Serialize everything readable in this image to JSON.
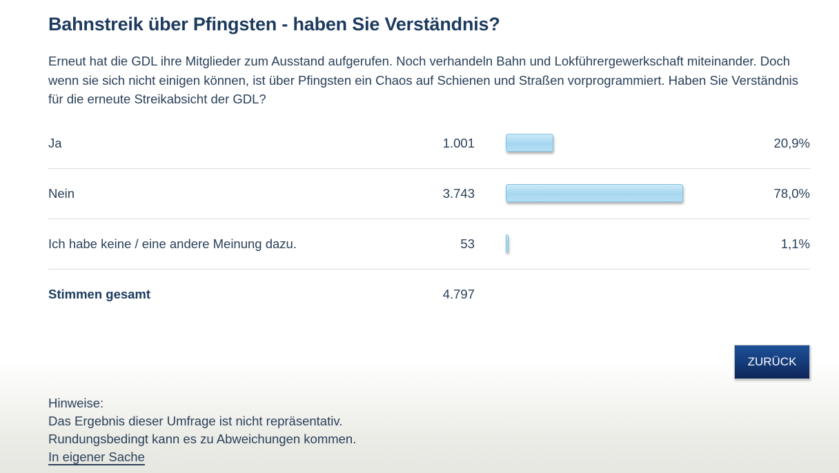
{
  "page": {
    "title": "Bahnstreik über Pfingsten - haben Sie Verständnis?",
    "question": "Erneut hat die GDL ihre Mitglieder zum Ausstand aufgerufen. Noch verhandeln Bahn und Lokführergewerkschaft miteinander. Doch wenn sie sich nicht einigen können, ist über Pfingsten ein Chaos auf Schienen und Straßen vorprogrammiert. Haben Sie Verständnis für die erneute Streikabsicht der GDL?"
  },
  "chart_data": {
    "type": "bar",
    "orientation": "horizontal",
    "categories": [
      "Ja",
      "Nein",
      "Ich habe keine / eine andere Meinung dazu."
    ],
    "values": [
      20.9,
      78.0,
      1.1
    ],
    "value_labels": [
      "20,9%",
      "78,0%",
      "1,1%"
    ],
    "counts": [
      "1.001",
      "3.743",
      "53"
    ],
    "total_label": "Stimmen gesamt",
    "total_count": "4.797",
    "xlim": [
      0,
      100
    ],
    "bar_fill_color": "#a5d7f0",
    "bar_border_color": "#82c3e2",
    "legend": "none",
    "grid": "off"
  },
  "actions": {
    "back_label": "ZURÜCK"
  },
  "footer": {
    "heading": "Hinweise:",
    "line1": "Das Ergebnis dieser Umfrage ist nicht repräsentativ.",
    "line2": "Rundungsbedingt kann es zu Abweichungen kommen.",
    "link_label": "In eigener Sache"
  },
  "colors": {
    "title_text": "#1c3a5e",
    "body_text": "#2a4059",
    "separator": "#dcdcdc",
    "button_top": "#1d5097",
    "button_bottom": "#0d2657",
    "page_bottom_fade": "#e7e7e2"
  }
}
